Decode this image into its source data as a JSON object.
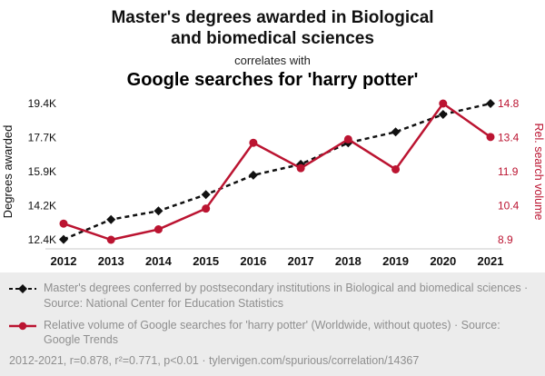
{
  "header": {
    "title_line1": "Master's degrees awarded in Biological",
    "title_line2": "and biomedical sciences",
    "connector": "correlates with",
    "subtitle": "Google searches for 'harry potter'"
  },
  "colors": {
    "accent_red": "#bb1431",
    "line_black": "#111111",
    "legend_bg": "#ececec",
    "legend_text": "#8f8f8f"
  },
  "chart_data": {
    "type": "line",
    "x": [
      "2012",
      "2013",
      "2014",
      "2015",
      "2016",
      "2017",
      "2018",
      "2019",
      "2020",
      "2021"
    ],
    "left_axis": {
      "label": "Degrees awarded",
      "color": "#111111",
      "ticks": [
        "12.4K",
        "14.2K",
        "15.9K",
        "17.7K",
        "19.4K"
      ],
      "min": 12400,
      "max": 19400
    },
    "right_axis": {
      "label": "Rel. search volume",
      "color": "#bb1431",
      "ticks": [
        "8.9",
        "10.4",
        "11.9",
        "13.4",
        "14.8"
      ],
      "min": 8.9,
      "max": 14.8
    },
    "series": [
      {
        "name": "Master's degrees awarded in Biological and biomedical sciences",
        "axis": "left",
        "color": "#111111",
        "line_style": "dashed",
        "marker": "diamond",
        "values": [
          12420,
          13440,
          13880,
          14720,
          15720,
          16280,
          17380,
          17940,
          18840,
          19400
        ]
      },
      {
        "name": "Google searches for 'harry potter'",
        "axis": "right",
        "color": "#bb1431",
        "line_style": "solid",
        "marker": "circle",
        "values": [
          9.6,
          8.9,
          9.35,
          10.25,
          13.1,
          12.0,
          13.25,
          11.95,
          14.8,
          13.35
        ]
      }
    ],
    "grid": "off",
    "legend_position": "bottom"
  },
  "legend": [
    {
      "text": "Master's degrees conferred by postsecondary institutions in Biological and biomedical sciences · Source: National Center for Education Statistics"
    },
    {
      "text": "Relative volume of Google searches for 'harry potter' (Worldwide, without quotes) · Source: Google Trends"
    }
  ],
  "footer": {
    "text": "2012-2021, r=0.878, r²=0.771, p<0.01 · tylervigen.com/spurious/correlation/14367"
  }
}
